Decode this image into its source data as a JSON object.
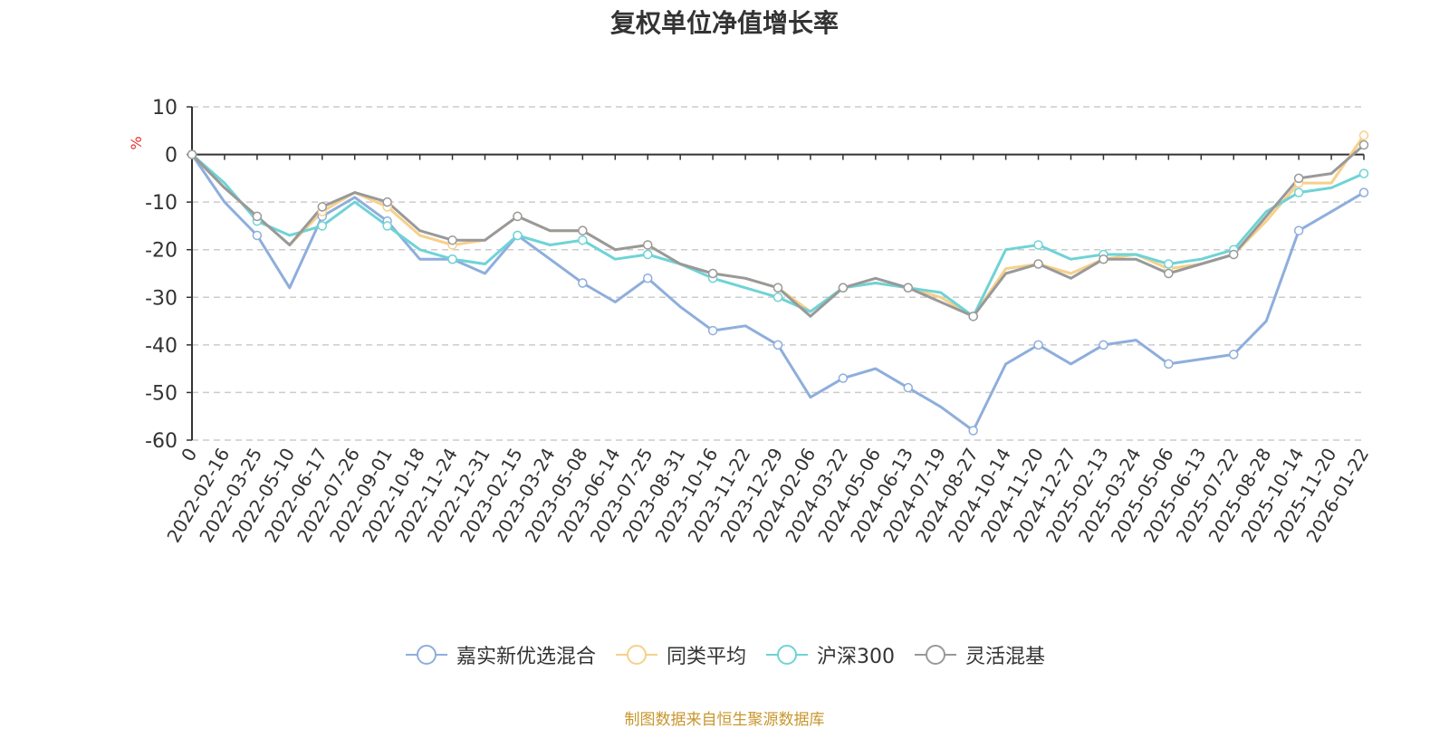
{
  "chart_data": {
    "type": "line",
    "title": "复权单位净值增长率",
    "ylabel": "%",
    "ylim": [
      -60,
      10
    ],
    "yticks": [
      10,
      0,
      -10,
      -20,
      -30,
      -40,
      -50,
      -60
    ],
    "grid": true,
    "legend_position": "bottom",
    "x": [
      "0",
      "2022-02-16",
      "2022-03-25",
      "2022-05-10",
      "2022-06-17",
      "2022-07-26",
      "2022-09-01",
      "2022-10-18",
      "2022-11-24",
      "2022-12-31",
      "2023-02-15",
      "2023-03-24",
      "2023-05-08",
      "2023-06-14",
      "2023-07-25",
      "2023-08-31",
      "2023-10-16",
      "2023-11-22",
      "2023-12-29",
      "2024-02-06",
      "2024-03-22",
      "2024-05-06",
      "2024-06-13",
      "2024-07-19",
      "2024-08-27",
      "2024-10-14",
      "2024-11-20",
      "2024-12-27",
      "2025-02-13",
      "2025-03-24",
      "2025-05-06",
      "2025-06-13",
      "2025-07-22",
      "2025-08-28",
      "2025-10-14",
      "2025-11-20",
      "2026-01-22"
    ],
    "series": [
      {
        "name": "嘉实新优选混合",
        "color": "#8eaedc",
        "values": [
          0,
          -10,
          -17,
          -28,
          -13,
          -9,
          -14,
          -22,
          -22,
          -25,
          -17,
          -22,
          -27,
          -31,
          -26,
          -32,
          -37,
          -36,
          -40,
          -51,
          -47,
          -45,
          -49,
          -53,
          -58,
          -44,
          -40,
          -44,
          -40,
          -39,
          -44,
          -43,
          -42,
          -35,
          -16,
          -12,
          -8
        ]
      },
      {
        "name": "同类平均",
        "color": "#f7d08a",
        "values": [
          0,
          -7,
          -13,
          -19,
          -12,
          -8,
          -11,
          -17,
          -19,
          -18,
          -13,
          -16,
          -16,
          -20,
          -19,
          -23,
          -25,
          -26,
          -28,
          -33,
          -28,
          -27,
          -28,
          -30,
          -34,
          -24,
          -23,
          -25,
          -22,
          -21,
          -24,
          -23,
          -21,
          -14,
          -6,
          -6,
          4
        ]
      },
      {
        "name": "沪深300",
        "color": "#6fd3d6",
        "values": [
          0,
          -6,
          -14,
          -17,
          -15,
          -10,
          -15,
          -20,
          -22,
          -23,
          -17,
          -19,
          -18,
          -22,
          -21,
          -23,
          -26,
          -28,
          -30,
          -33,
          -28,
          -27,
          -28,
          -29,
          -34,
          -20,
          -19,
          -22,
          -21,
          -21,
          -23,
          -22,
          -20,
          -12,
          -8,
          -7,
          -4
        ]
      },
      {
        "name": "灵活混基",
        "color": "#999999",
        "values": [
          0,
          -7,
          -13,
          -19,
          -11,
          -8,
          -10,
          -16,
          -18,
          -18,
          -13,
          -16,
          -16,
          -20,
          -19,
          -23,
          -25,
          -26,
          -28,
          -34,
          -28,
          -26,
          -28,
          -31,
          -34,
          -25,
          -23,
          -26,
          -22,
          -22,
          -25,
          -23,
          -21,
          -13,
          -5,
          -4,
          2
        ]
      }
    ]
  },
  "source_note": "制图数据来自恒生聚源数据库"
}
